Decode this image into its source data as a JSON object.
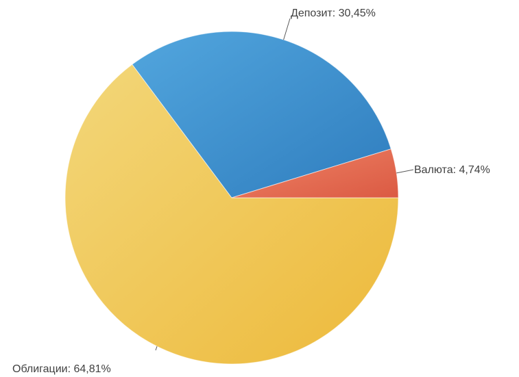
{
  "chart_data": {
    "type": "pie",
    "slices": [
      {
        "label": "Облигации: 64,81%",
        "name": "Облигации",
        "value": 64.81,
        "color": "#F2C94C",
        "color_light": "#F3D77A",
        "color_dark": "#EDB93A"
      },
      {
        "label": "Депозит: 30,45%",
        "name": "Депозит",
        "value": 30.45,
        "color": "#3D8FCF",
        "color_light": "#52A6DE",
        "color_dark": "#2F7DBE"
      },
      {
        "label": "Валюта: 4,74%",
        "name": "Валюта",
        "value": 4.74,
        "color": "#E86A50",
        "color_light": "#EE8366",
        "color_dark": "#DB5A43"
      }
    ],
    "legend": "none",
    "data_labels": "outside"
  }
}
